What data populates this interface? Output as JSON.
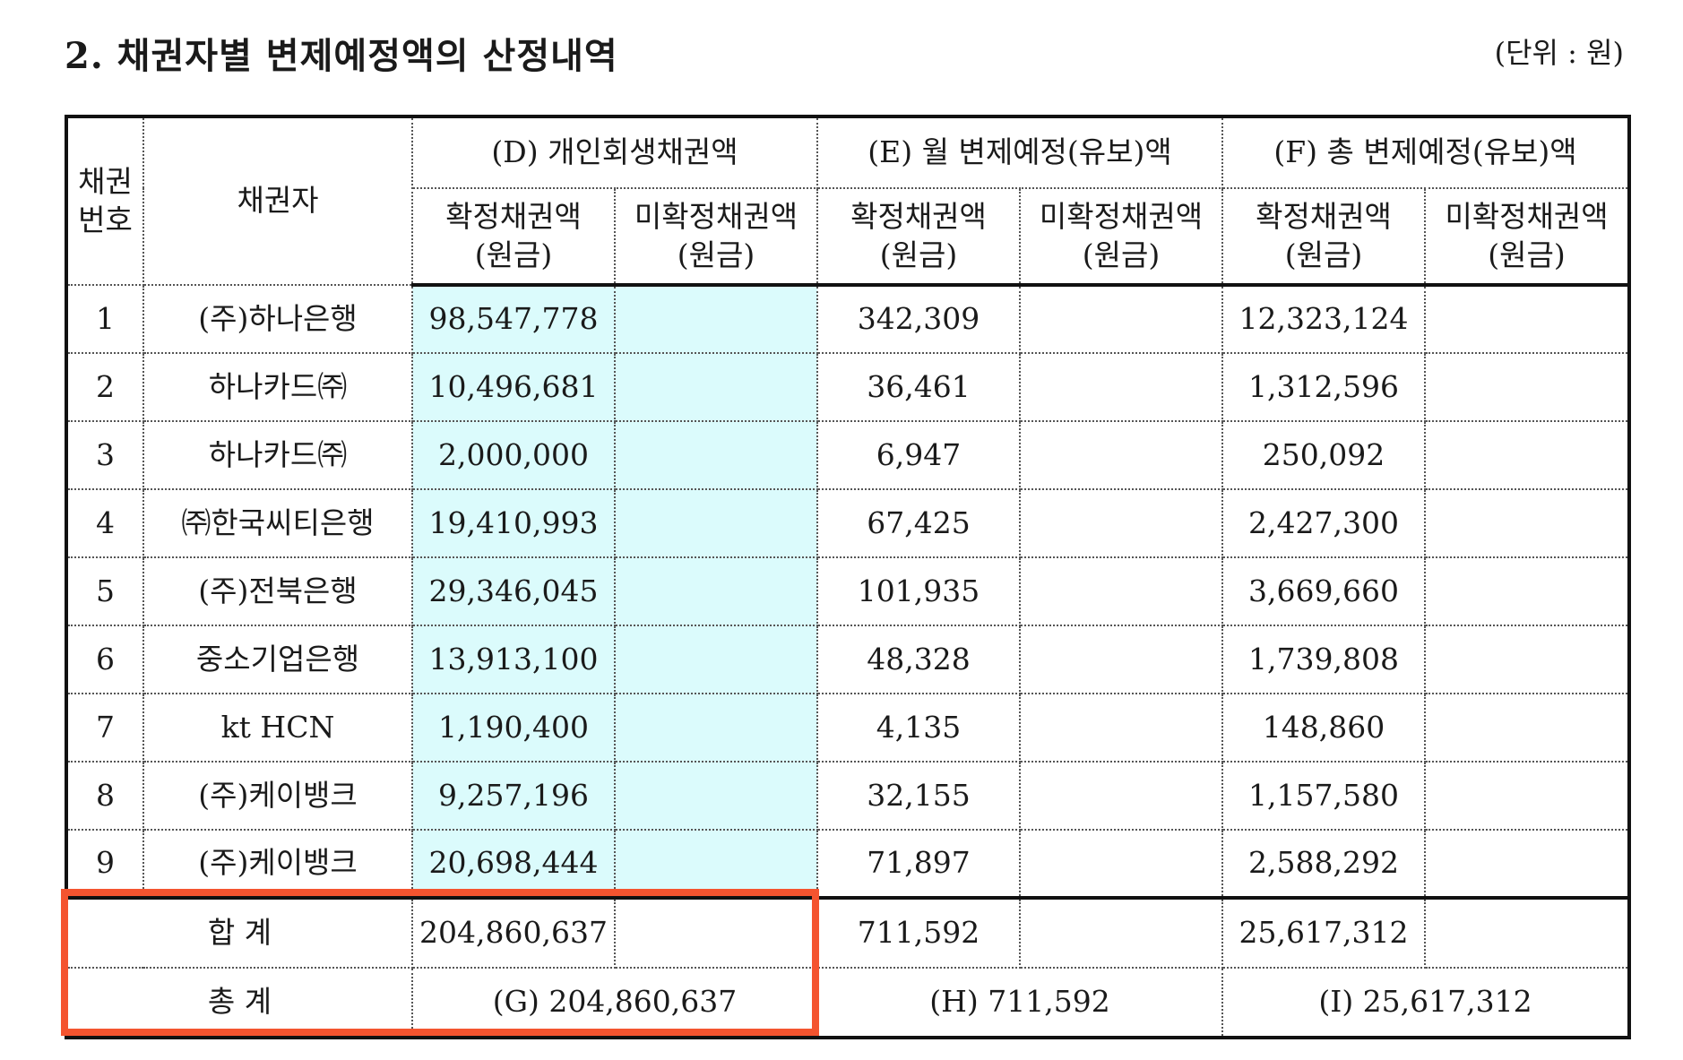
{
  "title": "2. 채권자별 변제예정액의 산정내역",
  "unit": "(단위 : 원)",
  "headers": {
    "no": [
      "채권",
      "번호"
    ],
    "creditor": "채권자",
    "groups": [
      "(D) 개인회생채권액",
      "(E) 월 변제예정(유보)액",
      "(F) 총 변제예정(유보)액"
    ],
    "confirmed": [
      "확정채권액",
      "(원금)"
    ],
    "unconfirmed": [
      "미확정채권액",
      "(원금)"
    ]
  },
  "rows": [
    {
      "no": "1",
      "creditor": "(주)하나은행",
      "d": "98,547,778",
      "e": "342,309",
      "f": "12,323,124"
    },
    {
      "no": "2",
      "creditor": "하나카드㈜",
      "d": "10,496,681",
      "e": "36,461",
      "f": "1,312,596"
    },
    {
      "no": "3",
      "creditor": "하나카드㈜",
      "d": "2,000,000",
      "e": "6,947",
      "f": "250,092"
    },
    {
      "no": "4",
      "creditor": "㈜한국씨티은행",
      "d": "19,410,993",
      "e": "67,425",
      "f": "2,427,300"
    },
    {
      "no": "5",
      "creditor": "(주)전북은행",
      "d": "29,346,045",
      "e": "101,935",
      "f": "3,669,660"
    },
    {
      "no": "6",
      "creditor": "중소기업은행",
      "d": "13,913,100",
      "e": "48,328",
      "f": "1,739,808"
    },
    {
      "no": "7",
      "creditor": "kt HCN",
      "d": "1,190,400",
      "e": "4,135",
      "f": "148,860"
    },
    {
      "no": "8",
      "creditor": "(주)케이뱅크",
      "d": "9,257,196",
      "e": "32,155",
      "f": "1,157,580"
    },
    {
      "no": "9",
      "creditor": "(주)케이뱅크",
      "d": "20,698,444",
      "e": "71,897",
      "f": "2,588,292"
    }
  ],
  "sum": {
    "label": "합 계",
    "d": "204,860,637",
    "e": "711,592",
    "f": "25,617,312"
  },
  "total": {
    "label": "총 계",
    "g": "(G) 204,860,637",
    "h": "(H) 711,592",
    "i": "(I) 25,617,312"
  },
  "colors": {
    "shade": "#dbfbfc",
    "highlight": "#f4542f"
  }
}
